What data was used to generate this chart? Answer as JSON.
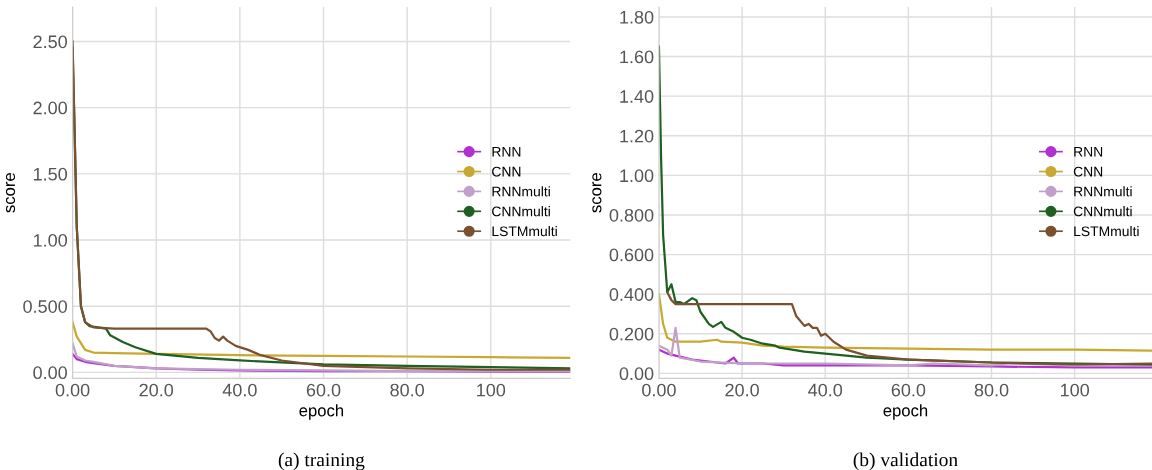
{
  "chart_data": [
    {
      "type": "line",
      "title": "(a) training",
      "xlabel": "epoch",
      "ylabel": "score",
      "xlim": [
        0,
        119
      ],
      "ylim": [
        -0.045,
        2.76
      ],
      "xticks": [
        {
          "value": 0,
          "label": "0.00"
        },
        {
          "value": 20,
          "label": "20.0"
        },
        {
          "value": 40,
          "label": "40.0"
        },
        {
          "value": 60,
          "label": "60.0"
        },
        {
          "value": 80,
          "label": "80.0"
        },
        100
      ],
      "yticks": [
        {
          "value": 0,
          "label": "0.00"
        },
        {
          "value": 0.5,
          "label": "0.500"
        },
        {
          "value": 1,
          "label": "1.00"
        },
        {
          "value": 1.5,
          "label": "1.50"
        },
        {
          "value": 2,
          "label": "2.00"
        },
        {
          "value": 2.5,
          "label": "2.50"
        }
      ],
      "grid": true,
      "legend": "center right",
      "series": [
        {
          "name": "RNN",
          "color": "#b030d0",
          "x": [
            0,
            1,
            3,
            5,
            10,
            15,
            20,
            30,
            40,
            60,
            80,
            100,
            119
          ],
          "values": [
            0.14,
            0.1,
            0.08,
            0.07,
            0.05,
            0.04,
            0.03,
            0.02,
            0.015,
            0.01,
            0.01,
            0.005,
            0.005
          ]
        },
        {
          "name": "CNN",
          "color": "#c8a830",
          "x": [
            0,
            1,
            3,
            5,
            10,
            20,
            40,
            60,
            80,
            100,
            119
          ],
          "values": [
            0.38,
            0.27,
            0.17,
            0.15,
            0.145,
            0.14,
            0.13,
            0.125,
            0.12,
            0.115,
            0.11
          ]
        },
        {
          "name": "RNNmulti",
          "color": "#c0a0c8",
          "x": [
            0,
            1,
            3,
            5,
            10,
            20,
            40,
            60,
            80,
            119
          ],
          "values": [
            0.22,
            0.12,
            0.09,
            0.08,
            0.05,
            0.03,
            0.02,
            0.015,
            0.01,
            0.01
          ]
        },
        {
          "name": "CNNmulti",
          "color": "#1e6020",
          "x": [
            0,
            0.5,
            1,
            2,
            3,
            4,
            6,
            8,
            9,
            12,
            15,
            20,
            30,
            40,
            60,
            80,
            100,
            119
          ],
          "values": [
            2.45,
            1.8,
            1.1,
            0.5,
            0.38,
            0.35,
            0.34,
            0.33,
            0.28,
            0.23,
            0.19,
            0.14,
            0.11,
            0.09,
            0.06,
            0.05,
            0.04,
            0.03
          ]
        },
        {
          "name": "LSTMmulti",
          "color": "#7a5030",
          "x": [
            0,
            0.5,
            1,
            2,
            3,
            5,
            10,
            32,
            33,
            34,
            35,
            36,
            37,
            39,
            42,
            45,
            50,
            60,
            80,
            100,
            119
          ],
          "values": [
            2.5,
            1.8,
            1.1,
            0.5,
            0.38,
            0.34,
            0.33,
            0.33,
            0.31,
            0.26,
            0.24,
            0.27,
            0.24,
            0.2,
            0.17,
            0.13,
            0.09,
            0.05,
            0.03,
            0.02,
            0.02
          ]
        }
      ]
    },
    {
      "type": "line",
      "title": "(b) validation",
      "xlabel": "epoch",
      "ylabel": "score",
      "xlim": [
        0,
        118.6
      ],
      "ylim": [
        -0.025,
        1.85
      ],
      "xticks": [
        {
          "value": 0,
          "label": "0.00"
        },
        {
          "value": 20,
          "label": "20.0"
        },
        {
          "value": 40,
          "label": "40.0"
        },
        {
          "value": 60,
          "label": "60.0"
        },
        {
          "value": 80,
          "label": "80.0"
        },
        100
      ],
      "yticks": [
        {
          "value": 0,
          "label": "0.00"
        },
        {
          "value": 0.2,
          "label": "0.200"
        },
        {
          "value": 0.4,
          "label": "0.400"
        },
        {
          "value": 0.6,
          "label": "0.600"
        },
        {
          "value": 0.8,
          "label": "0.800"
        },
        {
          "value": 1,
          "label": "1.00"
        },
        {
          "value": 1.2,
          "label": "1.20"
        },
        {
          "value": 1.4,
          "label": "1.40"
        },
        {
          "value": 1.6,
          "label": "1.60"
        },
        {
          "value": 1.8,
          "label": "1.80"
        }
      ],
      "grid": true,
      "legend": "center right",
      "series": [
        {
          "name": "RNN",
          "color": "#b030d0",
          "x": [
            0,
            2,
            4,
            8,
            12,
            16,
            18,
            19,
            25,
            30,
            40,
            60,
            80,
            100,
            118.6
          ],
          "values": [
            0.12,
            0.1,
            0.09,
            0.07,
            0.06,
            0.05,
            0.08,
            0.05,
            0.05,
            0.04,
            0.04,
            0.04,
            0.035,
            0.03,
            0.03
          ]
        },
        {
          "name": "CNN",
          "color": "#c8a830",
          "x": [
            0,
            1,
            2,
            4,
            10,
            14,
            15,
            20,
            25,
            30,
            40,
            60,
            80,
            100,
            118.6
          ],
          "values": [
            0.4,
            0.25,
            0.18,
            0.16,
            0.16,
            0.17,
            0.16,
            0.155,
            0.14,
            0.135,
            0.13,
            0.125,
            0.12,
            0.12,
            0.115
          ]
        },
        {
          "name": "RNNmulti",
          "color": "#c0a0c8",
          "x": [
            0,
            2,
            3,
            4,
            5,
            10,
            20,
            40,
            60,
            66,
            80,
            84,
            100,
            118.6
          ],
          "values": [
            0.14,
            0.12,
            0.09,
            0.23,
            0.08,
            0.06,
            0.05,
            0.05,
            0.04,
            0.05,
            0.04,
            0.05,
            0.04,
            0.04
          ]
        },
        {
          "name": "CNNmulti",
          "color": "#1e6020",
          "x": [
            0,
            0.5,
            1,
            2,
            3,
            4,
            5,
            6,
            8,
            9,
            10,
            12,
            13,
            15,
            16,
            18,
            20,
            22,
            25,
            28,
            29,
            35,
            40,
            50,
            60,
            80,
            100,
            118.6
          ],
          "values": [
            1.65,
            1.1,
            0.7,
            0.41,
            0.45,
            0.36,
            0.36,
            0.35,
            0.38,
            0.37,
            0.31,
            0.25,
            0.235,
            0.26,
            0.23,
            0.21,
            0.18,
            0.17,
            0.15,
            0.14,
            0.13,
            0.11,
            0.1,
            0.08,
            0.07,
            0.055,
            0.05,
            0.045
          ]
        },
        {
          "name": "LSTMmulti",
          "color": "#7a5030",
          "x": [
            2,
            3,
            4,
            10,
            32,
            33,
            35,
            36,
            37,
            38,
            39,
            40,
            42,
            45,
            50,
            60,
            80,
            100,
            118.6
          ],
          "values": [
            0.41,
            0.37,
            0.35,
            0.35,
            0.35,
            0.29,
            0.24,
            0.25,
            0.23,
            0.23,
            0.19,
            0.2,
            0.16,
            0.12,
            0.09,
            0.07,
            0.055,
            0.045,
            0.05
          ]
        }
      ]
    }
  ]
}
